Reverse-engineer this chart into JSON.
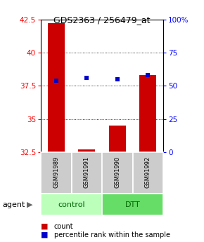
{
  "title": "GDS2363 / 256479_at",
  "samples": [
    "GSM91989",
    "GSM91991",
    "GSM91990",
    "GSM91992"
  ],
  "red_values": [
    42.2,
    32.75,
    34.5,
    38.3
  ],
  "blue_pct": [
    54,
    56,
    55,
    58
  ],
  "ylim_left": [
    32.5,
    42.5
  ],
  "ylim_right": [
    0,
    100
  ],
  "yticks_left": [
    32.5,
    35.0,
    37.5,
    40.0,
    42.5
  ],
  "ytick_labels_left": [
    "32.5",
    "35",
    "37.5",
    "40",
    "42.5"
  ],
  "yticks_right": [
    0,
    25,
    50,
    75,
    100
  ],
  "ytick_labels_right": [
    "0",
    "25",
    "50",
    "75",
    "100%"
  ],
  "bar_color": "#cc0000",
  "dot_color": "#0000cc",
  "bar_width": 0.55,
  "sample_box_color": "#cccccc",
  "control_color": "#bbffbb",
  "dtt_color": "#66dd66",
  "agent_label": "agent",
  "legend_count": "count",
  "legend_pct": "percentile rank within the sample",
  "group_labels": [
    "control",
    "DTT"
  ],
  "group_text_color": "#006600"
}
